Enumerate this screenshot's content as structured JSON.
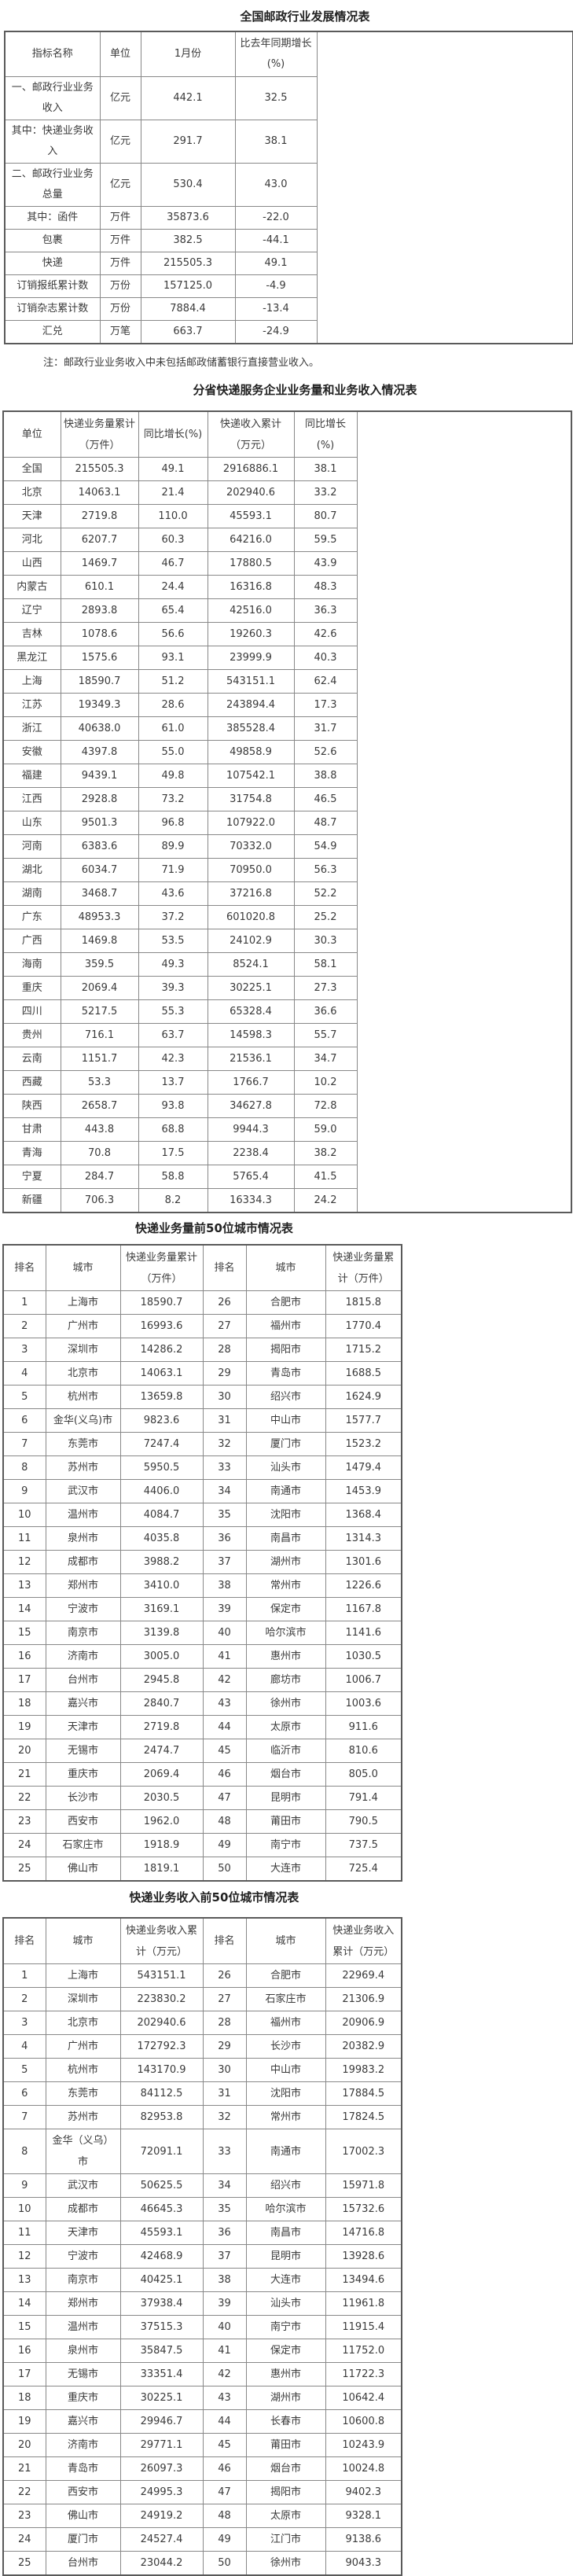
{
  "page": {
    "background": "#ffffff",
    "text_color": "#3a3a3a",
    "border_color": "#888888",
    "title_color": "#222222"
  },
  "table1": {
    "title": "全国邮政行业发展情况表",
    "headers": [
      "指标名称",
      "单位",
      "1月份",
      "比去年同期增长(%)"
    ],
    "rows": [
      [
        "一、邮政行业业务收入",
        "亿元",
        "442.1",
        "32.5"
      ],
      [
        "其中：快递业务收入",
        "亿元",
        "291.7",
        "38.1"
      ],
      [
        "二、邮政行业业务总量",
        "亿元",
        "530.4",
        "43.0"
      ],
      [
        "其中：函件",
        "万件",
        "35873.6",
        "-22.0"
      ],
      [
        "包裹",
        "万件",
        "382.5",
        "-44.1"
      ],
      [
        "快递",
        "万件",
        "215505.3",
        "49.1"
      ],
      [
        "订销报纸累计数",
        "万份",
        "157125.0",
        "-4.9"
      ],
      [
        "订销杂志累计数",
        "万份",
        "7884.4",
        "-13.4"
      ],
      [
        "汇兑",
        "万笔",
        "663.7",
        "-24.9"
      ]
    ],
    "note": "注：邮政行业业务收入中未包括邮政储蓄银行直接营业收入。"
  },
  "table2": {
    "title": "分省快递服务企业业务量和业务收入情况表",
    "headers": [
      "单位",
      "快递业务量累计（万件）",
      "同比增长(%)",
      "快递收入累计（万元）",
      "同比增长(%)"
    ],
    "rows": [
      [
        "全国",
        "215505.3",
        "49.1",
        "2916886.1",
        "38.1"
      ],
      [
        "北京",
        "14063.1",
        "21.4",
        "202940.6",
        "33.2"
      ],
      [
        "天津",
        "2719.8",
        "110.0",
        "45593.1",
        "80.7"
      ],
      [
        "河北",
        "6207.7",
        "60.3",
        "64216.0",
        "59.5"
      ],
      [
        "山西",
        "1469.7",
        "46.7",
        "17880.5",
        "43.9"
      ],
      [
        "内蒙古",
        "610.1",
        "24.4",
        "16316.8",
        "48.3"
      ],
      [
        "辽宁",
        "2893.8",
        "65.4",
        "42516.0",
        "36.3"
      ],
      [
        "吉林",
        "1078.6",
        "56.6",
        "19260.3",
        "42.6"
      ],
      [
        "黑龙江",
        "1575.6",
        "93.1",
        "23999.9",
        "40.3"
      ],
      [
        "上海",
        "18590.7",
        "51.2",
        "543151.1",
        "62.4"
      ],
      [
        "江苏",
        "19349.3",
        "28.6",
        "243894.4",
        "17.3"
      ],
      [
        "浙江",
        "40638.0",
        "61.0",
        "385528.4",
        "31.7"
      ],
      [
        "安徽",
        "4397.8",
        "55.0",
        "49858.9",
        "52.6"
      ],
      [
        "福建",
        "9439.1",
        "49.8",
        "107542.1",
        "38.8"
      ],
      [
        "江西",
        "2928.8",
        "73.2",
        "31754.8",
        "46.5"
      ],
      [
        "山东",
        "9501.3",
        "96.8",
        "107922.0",
        "48.7"
      ],
      [
        "河南",
        "6383.6",
        "89.9",
        "70332.0",
        "54.9"
      ],
      [
        "湖北",
        "6034.7",
        "71.9",
        "70950.0",
        "56.3"
      ],
      [
        "湖南",
        "3468.7",
        "43.6",
        "37216.8",
        "52.2"
      ],
      [
        "广东",
        "48953.3",
        "37.2",
        "601020.8",
        "25.2"
      ],
      [
        "广西",
        "1469.8",
        "53.5",
        "24102.9",
        "30.3"
      ],
      [
        "海南",
        "359.5",
        "49.3",
        "8524.1",
        "58.1"
      ],
      [
        "重庆",
        "2069.4",
        "39.3",
        "30225.1",
        "27.3"
      ],
      [
        "四川",
        "5217.5",
        "55.3",
        "65328.4",
        "36.6"
      ],
      [
        "贵州",
        "716.1",
        "63.7",
        "14598.3",
        "55.7"
      ],
      [
        "云南",
        "1151.7",
        "42.3",
        "21536.1",
        "34.7"
      ],
      [
        "西藏",
        "53.3",
        "13.7",
        "1766.7",
        "10.2"
      ],
      [
        "陕西",
        "2658.7",
        "93.8",
        "34627.8",
        "72.8"
      ],
      [
        "甘肃",
        "443.8",
        "68.8",
        "9944.3",
        "59.0"
      ],
      [
        "青海",
        "70.8",
        "17.5",
        "2238.4",
        "38.2"
      ],
      [
        "宁夏",
        "284.7",
        "58.8",
        "5765.4",
        "41.5"
      ],
      [
        "新疆",
        "706.3",
        "8.2",
        "16334.3",
        "24.2"
      ]
    ]
  },
  "table3": {
    "title": "快递业务量前50位城市情况表",
    "headers": [
      "排名",
      "城市",
      "快递业务量累计（万件）",
      "排名",
      "城市",
      "快递业务量累计（万件）"
    ],
    "rows": [
      [
        "1",
        "上海市",
        "18590.7",
        "26",
        "合肥市",
        "1815.8"
      ],
      [
        "2",
        "广州市",
        "16993.6",
        "27",
        "福州市",
        "1770.4"
      ],
      [
        "3",
        "深圳市",
        "14286.2",
        "28",
        "揭阳市",
        "1715.2"
      ],
      [
        "4",
        "北京市",
        "14063.1",
        "29",
        "青岛市",
        "1688.5"
      ],
      [
        "5",
        "杭州市",
        "13659.8",
        "30",
        "绍兴市",
        "1624.9"
      ],
      [
        "6",
        "金华(义乌)市",
        "9823.6",
        "31",
        "中山市",
        "1577.7"
      ],
      [
        "7",
        "东莞市",
        "7247.4",
        "32",
        "厦门市",
        "1523.2"
      ],
      [
        "8",
        "苏州市",
        "5950.5",
        "33",
        "汕头市",
        "1479.4"
      ],
      [
        "9",
        "武汉市",
        "4406.0",
        "34",
        "南通市",
        "1453.9"
      ],
      [
        "10",
        "温州市",
        "4084.7",
        "35",
        "沈阳市",
        "1368.4"
      ],
      [
        "11",
        "泉州市",
        "4035.8",
        "36",
        "南昌市",
        "1314.3"
      ],
      [
        "12",
        "成都市",
        "3988.2",
        "37",
        "湖州市",
        "1301.6"
      ],
      [
        "13",
        "郑州市",
        "3410.0",
        "38",
        "常州市",
        "1226.6"
      ],
      [
        "14",
        "宁波市",
        "3169.1",
        "39",
        "保定市",
        "1167.8"
      ],
      [
        "15",
        "南京市",
        "3139.8",
        "40",
        "哈尔滨市",
        "1141.6"
      ],
      [
        "16",
        "济南市",
        "3005.0",
        "41",
        "惠州市",
        "1030.5"
      ],
      [
        "17",
        "台州市",
        "2945.8",
        "42",
        "廊坊市",
        "1006.7"
      ],
      [
        "18",
        "嘉兴市",
        "2840.7",
        "43",
        "徐州市",
        "1003.6"
      ],
      [
        "19",
        "天津市",
        "2719.8",
        "44",
        "太原市",
        "911.6"
      ],
      [
        "20",
        "无锡市",
        "2474.7",
        "45",
        "临沂市",
        "810.6"
      ],
      [
        "21",
        "重庆市",
        "2069.4",
        "46",
        "烟台市",
        "805.0"
      ],
      [
        "22",
        "长沙市",
        "2030.5",
        "47",
        "昆明市",
        "791.4"
      ],
      [
        "23",
        "西安市",
        "1962.0",
        "48",
        "莆田市",
        "790.5"
      ],
      [
        "24",
        "石家庄市",
        "1918.9",
        "49",
        "南宁市",
        "737.5"
      ],
      [
        "25",
        "佛山市",
        "1819.1",
        "50",
        "大连市",
        "725.4"
      ]
    ]
  },
  "table4": {
    "title": "快递业务收入前50位城市情况表",
    "headers": [
      "排名",
      "城市",
      "快递业务收入累计（万元）",
      "排名",
      "城市",
      "快递业务收入累计（万元）"
    ],
    "rows": [
      [
        "1",
        "上海市",
        "543151.1",
        "26",
        "合肥市",
        "22969.4"
      ],
      [
        "2",
        "深圳市",
        "223830.2",
        "27",
        "石家庄市",
        "21306.9"
      ],
      [
        "3",
        "北京市",
        "202940.6",
        "28",
        "福州市",
        "20906.9"
      ],
      [
        "4",
        "广州市",
        "172792.3",
        "29",
        "长沙市",
        "20382.9"
      ],
      [
        "5",
        "杭州市",
        "143170.9",
        "30",
        "中山市",
        "19983.2"
      ],
      [
        "6",
        "东莞市",
        "84112.5",
        "31",
        "沈阳市",
        "17884.5"
      ],
      [
        "7",
        "苏州市",
        "82953.8",
        "32",
        "常州市",
        "17824.5"
      ],
      [
        "8",
        "金华（义乌）市",
        "72091.1",
        "33",
        "南通市",
        "17002.3"
      ],
      [
        "9",
        "武汉市",
        "50625.5",
        "34",
        "绍兴市",
        "15971.8"
      ],
      [
        "10",
        "成都市",
        "46645.3",
        "35",
        "哈尔滨市",
        "15732.6"
      ],
      [
        "11",
        "天津市",
        "45593.1",
        "36",
        "南昌市",
        "14716.8"
      ],
      [
        "12",
        "宁波市",
        "42468.9",
        "37",
        "昆明市",
        "13928.6"
      ],
      [
        "13",
        "南京市",
        "40425.1",
        "38",
        "大连市",
        "13494.6"
      ],
      [
        "14",
        "郑州市",
        "37938.4",
        "39",
        "汕头市",
        "11961.8"
      ],
      [
        "15",
        "温州市",
        "37515.3",
        "40",
        "南宁市",
        "11915.4"
      ],
      [
        "16",
        "泉州市",
        "35847.5",
        "41",
        "保定市",
        "11752.0"
      ],
      [
        "17",
        "无锡市",
        "33351.4",
        "42",
        "惠州市",
        "11722.3"
      ],
      [
        "18",
        "重庆市",
        "30225.1",
        "43",
        "湖州市",
        "10642.4"
      ],
      [
        "19",
        "嘉兴市",
        "29946.7",
        "44",
        "长春市",
        "10600.8"
      ],
      [
        "20",
        "济南市",
        "29771.1",
        "45",
        "莆田市",
        "10243.9"
      ],
      [
        "21",
        "青岛市",
        "26097.3",
        "46",
        "烟台市",
        "10024.8"
      ],
      [
        "22",
        "西安市",
        "24995.3",
        "47",
        "揭阳市",
        "9402.3"
      ],
      [
        "23",
        "佛山市",
        "24919.2",
        "48",
        "太原市",
        "9328.1"
      ],
      [
        "24",
        "厦门市",
        "24527.4",
        "49",
        "江门市",
        "9138.6"
      ],
      [
        "25",
        "台州市",
        "23044.2",
        "50",
        "徐州市",
        "9043.3"
      ]
    ]
  }
}
